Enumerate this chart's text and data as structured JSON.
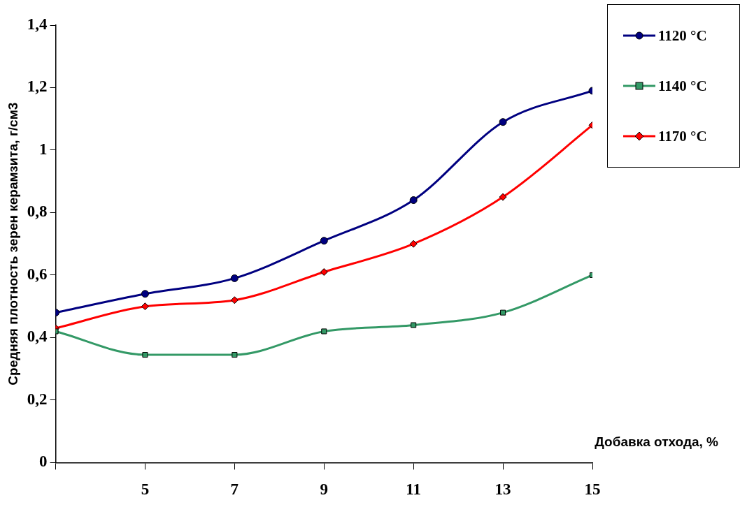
{
  "chart_data": {
    "type": "line",
    "xlabel": "Добавка отхода, %",
    "ylabel": "Средняя плотность зерен керамзита, г/см3",
    "x": [
      3,
      5,
      7,
      9,
      11,
      13,
      15
    ],
    "series": [
      {
        "name": "1120 °C",
        "color": "#000080",
        "marker": "circle",
        "values": [
          0.48,
          0.54,
          0.59,
          0.71,
          0.84,
          1.09,
          1.19
        ]
      },
      {
        "name": "1140 °C",
        "color": "#339966",
        "marker": "square",
        "values": [
          0.42,
          0.345,
          0.345,
          0.42,
          0.44,
          0.48,
          0.6
        ]
      },
      {
        "name": "1170 °C",
        "color": "#ff0000",
        "marker": "diamond",
        "values": [
          0.43,
          0.5,
          0.52,
          0.61,
          0.7,
          0.85,
          1.08
        ]
      }
    ],
    "xlim": [
      3,
      15
    ],
    "xticks": [
      {
        "value": 3,
        "label": null
      },
      5,
      7,
      9,
      11,
      13,
      15
    ],
    "ylim": [
      0,
      1.4
    ],
    "yticks": [
      0,
      {
        "value": 0.2,
        "label": "0,2"
      },
      {
        "value": 0.4,
        "label": "0,4"
      },
      {
        "value": 0.6,
        "label": "0,6"
      },
      {
        "value": 0.8,
        "label": "0,8"
      },
      1,
      {
        "value": 1.2,
        "label": "1,2"
      },
      {
        "value": 1.4,
        "label": "1,4"
      }
    ],
    "grid": false,
    "legend": "top right"
  }
}
